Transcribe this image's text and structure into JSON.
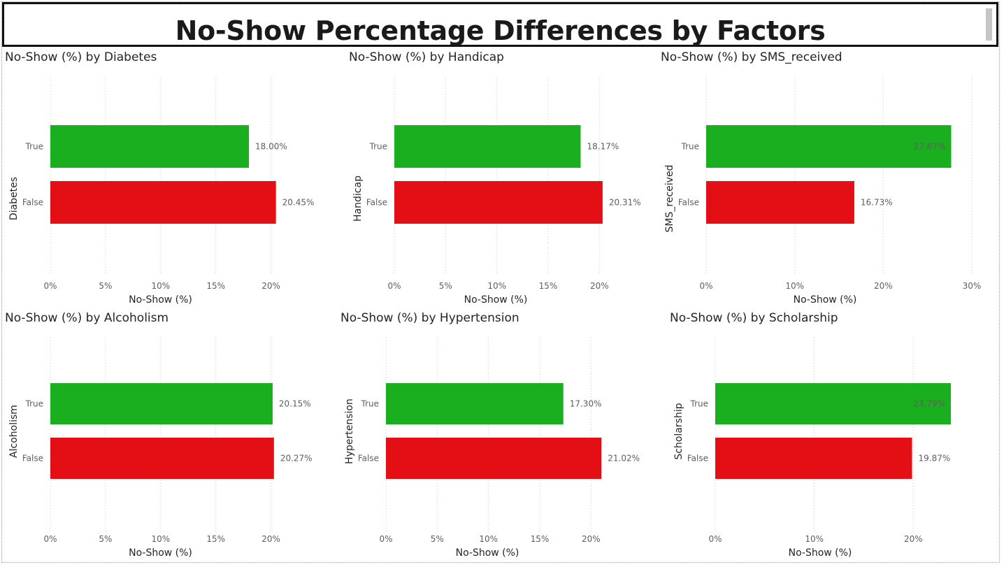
{
  "page": {
    "title": "No-Show Percentage Differences by Factors"
  },
  "colors": {
    "true_bar": "#1aaf1f",
    "false_bar": "#e30f14",
    "data_label_inside": "#ffffff"
  },
  "chart_data": [
    {
      "type": "bar",
      "orientation": "horizontal",
      "title": "No-Show (%) by Diabetes",
      "xlabel": "No-Show (%)",
      "ylabel": "Diabetes",
      "categories": [
        "True",
        "False"
      ],
      "values": [
        18.0,
        20.45
      ],
      "value_labels": [
        "18.00%",
        "20.45%"
      ],
      "xlim": [
        0,
        22.5
      ],
      "xticks": [
        0,
        5,
        10,
        15,
        20
      ],
      "xtick_labels": [
        "0%",
        "5%",
        "10%",
        "15%",
        "20%"
      ],
      "grid": true
    },
    {
      "type": "bar",
      "orientation": "horizontal",
      "title": "No-Show (%) by Handicap",
      "xlabel": "No-Show (%)",
      "ylabel": "Handicap",
      "categories": [
        "True",
        "False"
      ],
      "values": [
        18.17,
        20.31
      ],
      "value_labels": [
        "18.17%",
        "20.31%"
      ],
      "xlim": [
        0,
        22.5
      ],
      "xticks": [
        0,
        5,
        10,
        15,
        20
      ],
      "xtick_labels": [
        "0%",
        "5%",
        "10%",
        "15%",
        "20%"
      ],
      "grid": true
    },
    {
      "type": "bar",
      "orientation": "horizontal",
      "title": "No-Show (%) by SMS_received",
      "xlabel": "No-Show (%)",
      "ylabel": "SMS_received",
      "categories": [
        "True",
        "False"
      ],
      "values": [
        27.67,
        16.73
      ],
      "value_labels": [
        "27.67%",
        "16.73%"
      ],
      "xlim": [
        0,
        30
      ],
      "xticks": [
        0,
        10,
        20,
        30
      ],
      "xtick_labels": [
        "0%",
        "10%",
        "20%",
        "30%"
      ],
      "grid": true
    },
    {
      "type": "bar",
      "orientation": "horizontal",
      "title": "No-Show (%) by Alcoholism",
      "xlabel": "No-Show (%)",
      "ylabel": "Alcoholism",
      "categories": [
        "True",
        "False"
      ],
      "values": [
        20.15,
        20.27
      ],
      "value_labels": [
        "20.15%",
        "20.27%"
      ],
      "xlim": [
        0,
        22.5
      ],
      "xticks": [
        0,
        5,
        10,
        15,
        20
      ],
      "xtick_labels": [
        "0%",
        "5%",
        "10%",
        "15%",
        "20%"
      ],
      "grid": true
    },
    {
      "type": "bar",
      "orientation": "horizontal",
      "title": "No-Show (%) by Hypertension",
      "xlabel": "No-Show (%)",
      "ylabel": "Hypertension",
      "categories": [
        "True",
        "False"
      ],
      "values": [
        17.3,
        21.02
      ],
      "value_labels": [
        "17.30%",
        "21.02%"
      ],
      "xlim": [
        0,
        22.5
      ],
      "xticks": [
        0,
        5,
        10,
        15,
        20
      ],
      "xtick_labels": [
        "0%",
        "5%",
        "10%",
        "15%",
        "20%"
      ],
      "grid": true
    },
    {
      "type": "bar",
      "orientation": "horizontal",
      "title": "No-Show (%) by Scholarship",
      "xlabel": "No-Show (%)",
      "ylabel": "Scholarship",
      "categories": [
        "True",
        "False"
      ],
      "values": [
        23.79,
        19.87
      ],
      "value_labels": [
        "23.79%",
        "19.87%"
      ],
      "xlim": [
        0,
        24
      ],
      "xticks": [
        0,
        10,
        20
      ],
      "xtick_labels": [
        "0%",
        "10%",
        "20%"
      ],
      "grid": true
    }
  ]
}
